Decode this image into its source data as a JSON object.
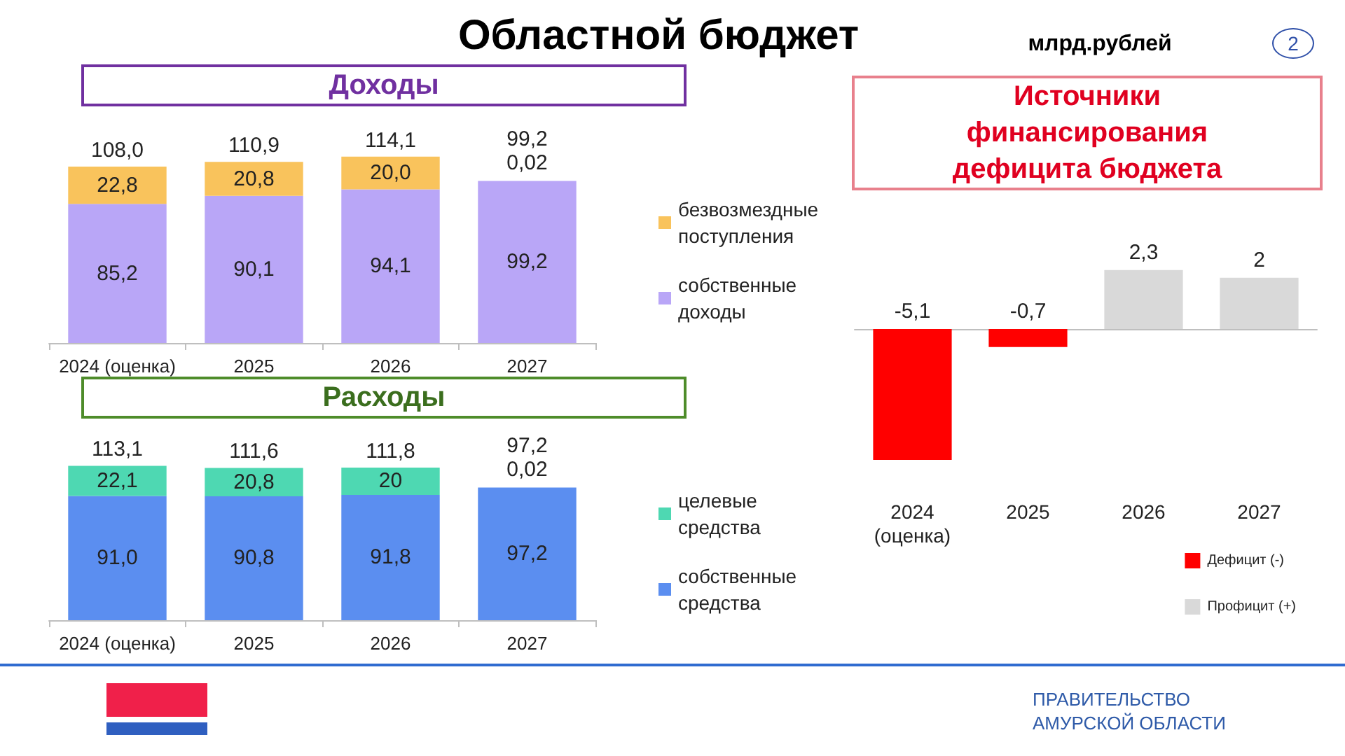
{
  "chart_data": [
    {
      "type": "bar",
      "title": "Доходы",
      "stacked": true,
      "legend": "right",
      "categories": [
        "2024 (оценка)",
        "2025",
        "2026",
        "2027"
      ],
      "series": [
        {
          "name": "собственные доходы",
          "color": "#b9a6f7",
          "values": [
            85.2,
            90.1,
            94.1,
            99.2
          ],
          "value_labels": [
            "85,2",
            "90,1",
            "94,1",
            "99,2"
          ]
        },
        {
          "name": "безвозмездные поступления",
          "color": "#f9c35c",
          "values": [
            22.8,
            20.8,
            20.0,
            0.02
          ],
          "value_labels": [
            "22,8",
            "20,8",
            "20,0",
            "0,02"
          ]
        }
      ],
      "totals": [
        "108,0",
        "110,9",
        "114,1",
        "99,2"
      ],
      "annotations": [
        "Областной бюджет",
        "млрд.рублей",
        "2",
        "ПРАВИТЕЛЬСТВО АМУРСКОЙ ОБЛАСТИ"
      ]
    },
    {
      "type": "bar",
      "title": "Расходы",
      "stacked": true,
      "legend": "right",
      "categories": [
        "2024 (оценка)",
        "2025",
        "2026",
        "2027"
      ],
      "series": [
        {
          "name": "собственные средства",
          "color": "#5b8ef0",
          "values": [
            91.0,
            90.8,
            91.8,
            97.2
          ],
          "value_labels": [
            "91,0",
            "90,8",
            "91,8",
            "97,2"
          ]
        },
        {
          "name": "целевые средства",
          "color": "#4ed8b2",
          "values": [
            22.1,
            20.8,
            20,
            0.02
          ],
          "value_labels": [
            "22,1",
            "20,8",
            "20",
            "0,02"
          ]
        }
      ],
      "totals": [
        "113,1",
        "111,6",
        "111,8",
        "97,2"
      ]
    },
    {
      "type": "bar",
      "title": "Источники финансирования дефицита бюджета",
      "legend": "bottom right",
      "categories": [
        "2024 (оценка)",
        "2025",
        "2026",
        "2027"
      ],
      "series": [
        {
          "name": "Дефицит (-)",
          "color": "#ff0000",
          "values": [
            -5.1,
            -0.7,
            null,
            null
          ],
          "value_labels": [
            "-5,1",
            "-0,7",
            null,
            null
          ]
        },
        {
          "name": "Профицит (+)",
          "color": "#d9d9d9",
          "values": [
            null,
            null,
            2.3,
            2
          ],
          "value_labels": [
            null,
            null,
            "2,3",
            "2"
          ]
        }
      ]
    }
  ]
}
